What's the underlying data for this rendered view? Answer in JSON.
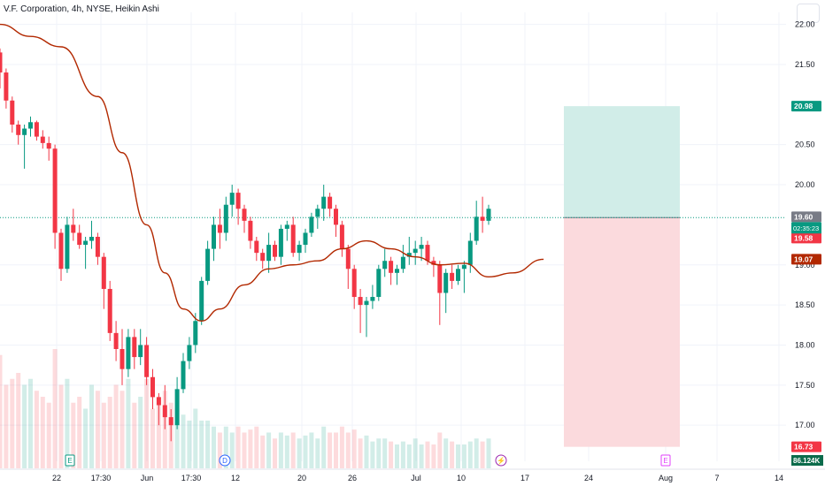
{
  "header": {
    "title": "V.F. Corporation, 4h, NYSE, Heikin Ashi"
  },
  "colors": {
    "up": "#089981",
    "down": "#f23645",
    "ma": "#b22800",
    "grid": "#f0f3fa",
    "axisText": "#131722",
    "profitZone": "#d1ede8",
    "lossZone": "#fbdadd"
  },
  "chart_data": {
    "type": "candlestick",
    "title": "V.F. Corporation, 4h, NYSE, Heikin Ashi",
    "ylim": [
      16.55,
      22.15
    ],
    "y_ticks": [
      "22.00",
      "21.50",
      "20.50",
      "20.00",
      "19.00",
      "18.50",
      "18.00",
      "17.50",
      "17.00"
    ],
    "x_ticks": [
      "22",
      "17:30",
      "Jun",
      "17:30",
      "12",
      "20",
      "26",
      "Jul",
      "10",
      "17",
      "24",
      "Aug",
      "7",
      "14"
    ],
    "candles": [
      [
        21.65,
        21.7,
        21.2,
        21.4
      ],
      [
        21.4,
        21.45,
        20.95,
        21.05
      ],
      [
        21.05,
        21.1,
        20.65,
        20.75
      ],
      [
        20.75,
        20.8,
        20.5,
        20.62
      ],
      [
        20.62,
        20.75,
        20.2,
        20.7
      ],
      [
        20.7,
        20.85,
        20.6,
        20.78
      ],
      [
        20.78,
        20.8,
        20.55,
        20.6
      ],
      [
        20.6,
        20.68,
        20.45,
        20.52
      ],
      [
        20.52,
        20.6,
        20.3,
        20.45
      ],
      [
        20.45,
        20.5,
        19.2,
        19.4
      ],
      [
        19.4,
        19.45,
        18.8,
        18.95
      ],
      [
        18.95,
        19.6,
        18.9,
        19.5
      ],
      [
        19.5,
        19.7,
        19.3,
        19.4
      ],
      [
        19.4,
        19.5,
        19.2,
        19.25
      ],
      [
        19.25,
        19.35,
        18.95,
        19.3
      ],
      [
        19.3,
        19.55,
        19.2,
        19.35
      ],
      [
        19.35,
        19.4,
        19.0,
        19.1
      ],
      [
        19.1,
        19.15,
        18.45,
        18.7
      ],
      [
        18.7,
        18.8,
        18.05,
        18.15
      ],
      [
        18.15,
        18.3,
        17.8,
        17.95
      ],
      [
        17.95,
        18.2,
        17.5,
        17.7
      ],
      [
        17.7,
        18.2,
        17.6,
        18.1
      ],
      [
        18.1,
        18.2,
        17.7,
        17.85
      ],
      [
        17.85,
        18.2,
        17.75,
        18.0
      ],
      [
        18.0,
        18.1,
        17.5,
        17.6
      ],
      [
        17.6,
        17.7,
        17.2,
        17.35
      ],
      [
        17.35,
        17.4,
        17.0,
        17.25
      ],
      [
        17.25,
        17.5,
        16.95,
        17.1
      ],
      [
        17.1,
        17.2,
        16.8,
        17.0
      ],
      [
        17.0,
        17.6,
        16.95,
        17.45
      ],
      [
        17.45,
        17.9,
        17.4,
        17.8
      ],
      [
        17.8,
        18.1,
        17.7,
        18.0
      ],
      [
        18.0,
        18.4,
        17.9,
        18.3
      ],
      [
        18.3,
        18.85,
        18.25,
        18.8
      ],
      [
        18.8,
        19.3,
        18.75,
        19.2
      ],
      [
        19.2,
        19.6,
        19.05,
        19.5
      ],
      [
        19.5,
        19.7,
        19.2,
        19.4
      ],
      [
        19.4,
        19.85,
        19.3,
        19.75
      ],
      [
        19.75,
        20.0,
        19.6,
        19.9
      ],
      [
        19.9,
        19.95,
        19.5,
        19.7
      ],
      [
        19.7,
        19.75,
        19.4,
        19.55
      ],
      [
        19.55,
        19.6,
        19.2,
        19.3
      ],
      [
        19.3,
        19.35,
        19.05,
        19.15
      ],
      [
        19.15,
        19.2,
        18.95,
        19.05
      ],
      [
        19.05,
        19.4,
        18.9,
        19.25
      ],
      [
        19.25,
        19.3,
        19.05,
        19.1
      ],
      [
        19.1,
        19.5,
        19.0,
        19.45
      ],
      [
        19.45,
        19.55,
        19.3,
        19.5
      ],
      [
        19.5,
        19.6,
        19.1,
        19.15
      ],
      [
        19.15,
        19.3,
        19.05,
        19.25
      ],
      [
        19.25,
        19.45,
        19.15,
        19.4
      ],
      [
        19.4,
        19.65,
        19.35,
        19.6
      ],
      [
        19.6,
        19.75,
        19.45,
        19.7
      ],
      [
        19.7,
        20.0,
        19.55,
        19.85
      ],
      [
        19.85,
        19.9,
        19.6,
        19.7
      ],
      [
        19.7,
        19.75,
        19.35,
        19.5
      ],
      [
        19.5,
        19.55,
        19.1,
        19.2
      ],
      [
        19.2,
        19.25,
        18.7,
        18.95
      ],
      [
        18.95,
        19.0,
        18.45,
        18.6
      ],
      [
        18.6,
        18.7,
        18.15,
        18.5
      ],
      [
        18.5,
        18.6,
        18.1,
        18.55
      ],
      [
        18.55,
        18.75,
        18.45,
        18.6
      ],
      [
        18.6,
        19.0,
        18.55,
        18.95
      ],
      [
        18.95,
        19.2,
        18.85,
        19.05
      ],
      [
        19.05,
        19.1,
        18.75,
        18.9
      ],
      [
        18.9,
        19.0,
        18.75,
        18.95
      ],
      [
        18.95,
        19.25,
        18.9,
        19.1
      ],
      [
        19.1,
        19.35,
        19.0,
        19.15
      ],
      [
        19.15,
        19.3,
        19.0,
        19.2
      ],
      [
        19.2,
        19.35,
        19.05,
        19.25
      ],
      [
        19.25,
        19.3,
        19.0,
        19.05
      ],
      [
        19.05,
        19.1,
        18.85,
        19.0
      ],
      [
        19.0,
        19.05,
        18.25,
        18.65
      ],
      [
        18.65,
        18.95,
        18.4,
        18.9
      ],
      [
        18.9,
        19.0,
        18.7,
        18.8
      ],
      [
        18.8,
        19.0,
        18.75,
        18.95
      ],
      [
        18.95,
        19.05,
        18.65,
        19.0
      ],
      [
        19.0,
        19.4,
        18.9,
        19.3
      ],
      [
        19.3,
        19.8,
        19.25,
        19.6
      ],
      [
        19.6,
        19.85,
        19.4,
        19.55
      ],
      [
        19.55,
        19.75,
        19.5,
        19.7
      ]
    ],
    "moving_average": [
      [
        0,
        22.0
      ],
      [
        5,
        21.85
      ],
      [
        10,
        21.72
      ],
      [
        16,
        21.1
      ],
      [
        20,
        20.4
      ],
      [
        24,
        19.5
      ],
      [
        27,
        18.9
      ],
      [
        30,
        18.45
      ],
      [
        33,
        18.3
      ],
      [
        36,
        18.45
      ],
      [
        40,
        18.75
      ],
      [
        44,
        18.95
      ],
      [
        48,
        19.0
      ],
      [
        52,
        19.05
      ],
      [
        56,
        19.2
      ],
      [
        60,
        19.3
      ],
      [
        64,
        19.2
      ],
      [
        68,
        19.1
      ],
      [
        72,
        19.0
      ],
      [
        76,
        19.02
      ],
      [
        80,
        18.85
      ],
      [
        84,
        18.9
      ],
      [
        89,
        19.07
      ]
    ],
    "volume": [
      38,
      28,
      30,
      32,
      28,
      30,
      26,
      24,
      22,
      40,
      28,
      30,
      22,
      24,
      20,
      28,
      26,
      22,
      24,
      28,
      26,
      30,
      22,
      24,
      30,
      20,
      24,
      26,
      22,
      20,
      18,
      16,
      20,
      16,
      16,
      14,
      12,
      14,
      12,
      14,
      12,
      13,
      14,
      11,
      12,
      10,
      12,
      11,
      12,
      10,
      11,
      12,
      10,
      14,
      12,
      12,
      14,
      12,
      13,
      10,
      11,
      9,
      10,
      10,
      9,
      8,
      9,
      8,
      10,
      8,
      9,
      8,
      12,
      10,
      9,
      8,
      8,
      9,
      10,
      9,
      10
    ],
    "current_price_line": 19.59,
    "position_zones": {
      "entry": 19.59,
      "target": 20.98,
      "stop": 16.73
    },
    "price_labels": [
      {
        "value": 20.98,
        "text": "20.98",
        "color": "#089981"
      },
      {
        "value": 19.6,
        "text": "19.60",
        "color": "#787b86"
      },
      {
        "value": 19.59,
        "text": "19.59",
        "color": "#089981"
      },
      {
        "value": 19.58,
        "text": "19.58",
        "color": "#f23645"
      },
      {
        "value": 19.07,
        "text": "19.07",
        "color": "#b22800"
      },
      {
        "value": 16.73,
        "text": "16.73",
        "color": "#f23645"
      }
    ],
    "countdown": "02:35:23",
    "volume_label": "86.124K",
    "event_markers": [
      {
        "x_label": "E",
        "type": "earnings"
      },
      {
        "x_label": "D",
        "type": "dividend"
      },
      {
        "x_label": "⚡",
        "type": "split"
      },
      {
        "x_label": "E",
        "type": "earnings"
      }
    ]
  }
}
